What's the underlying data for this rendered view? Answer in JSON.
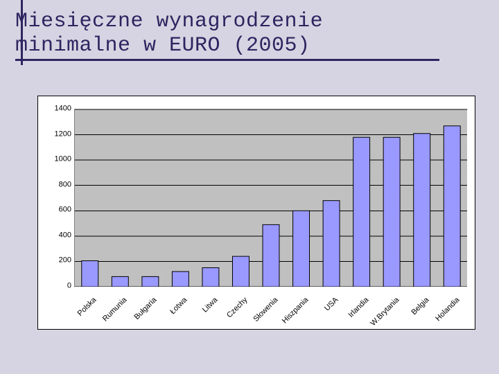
{
  "title": {
    "line1": "Miesięczne wynagrodzenie",
    "line2": "minimalne w EURO (2005)",
    "color": "#2e2460",
    "font_family": "Courier New",
    "font_size_pt": 22
  },
  "chart": {
    "type": "bar",
    "categories": [
      "Polska",
      "Rumunia",
      "Bułgaria",
      "Łotwa",
      "Litwa",
      "Czechy",
      "Słowenia",
      "Hiszpania",
      "USA",
      "Irlandia",
      "W.Brytania",
      "Belgia",
      "Holandia"
    ],
    "values": [
      205,
      80,
      80,
      120,
      150,
      240,
      490,
      600,
      680,
      1180,
      1180,
      1210,
      1270
    ],
    "bar_color": "#9999ff",
    "bar_border": "#000000",
    "bar_width": 0.55,
    "ylim": [
      0,
      1400
    ],
    "ytick_step": 200,
    "yticks": [
      0,
      200,
      400,
      600,
      800,
      1000,
      1200,
      1400
    ],
    "grid_color": "#000000",
    "plot_bg": "#c0c0c0",
    "outer_bg": "#ffffff",
    "page_bg": "#d6d4e2",
    "label_fontsize": 11,
    "xlabel_rotation": -45
  }
}
